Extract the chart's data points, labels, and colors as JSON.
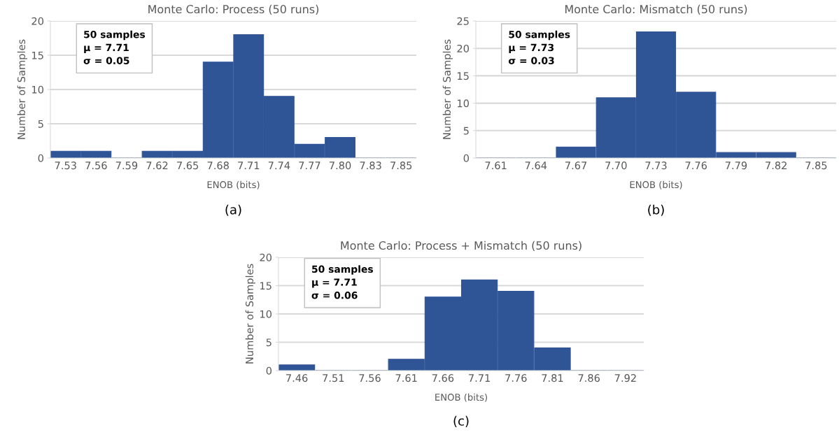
{
  "chart_data": [
    {
      "type": "bar",
      "title": "Monte Carlo: Process (50 runs)",
      "xlabel": "ENOB (bits)",
      "ylabel": "Number of Samples",
      "categories": [
        "7.53",
        "7.56",
        "7.59",
        "7.62",
        "7.65",
        "7.68",
        "7.71",
        "7.74",
        "7.77",
        "7.80",
        "7.83",
        "7.85"
      ],
      "values": [
        1,
        1,
        0,
        1,
        1,
        14,
        18,
        9,
        2,
        3,
        0,
        0
      ],
      "color": "#2f5597",
      "ylim": [
        0,
        20
      ],
      "yticks": [
        0,
        5,
        10,
        15,
        20
      ],
      "grid": "y",
      "annotations": [
        "50 samples\nμ = 7.71\nσ = 0.05",
        "(a)"
      ]
    },
    {
      "type": "bar",
      "title": "Monte Carlo: Mismatch (50 runs)",
      "xlabel": "ENOB (bits)",
      "ylabel": "Number of Samples",
      "categories": [
        "7.61",
        "7.64",
        "7.67",
        "7.70",
        "7.73",
        "7.76",
        "7.79",
        "7.82",
        "7.85"
      ],
      "values": [
        0,
        0,
        2,
        11,
        23,
        12,
        1,
        1,
        0
      ],
      "color": "#2f5597",
      "ylim": [
        0,
        25
      ],
      "yticks": [
        0,
        5,
        10,
        15,
        20,
        25
      ],
      "grid": "y",
      "annotations": [
        "50 samples\nμ = 7.73\nσ = 0.03",
        "(b)"
      ]
    },
    {
      "type": "bar",
      "title": "Monte Carlo: Process + Mismatch (50 runs)",
      "xlabel": "ENOB (bits)",
      "ylabel": "Number of Samples",
      "categories": [
        "7.46",
        "7.51",
        "7.56",
        "7.61",
        "7.66",
        "7.71",
        "7.76",
        "7.81",
        "7.86",
        "7.92"
      ],
      "values": [
        1,
        0,
        0,
        2,
        13,
        16,
        14,
        4,
        0,
        0
      ],
      "color": "#2f5597",
      "ylim": [
        0,
        20
      ],
      "yticks": [
        0,
        5,
        10,
        15,
        20
      ],
      "grid": "y",
      "annotations": [
        "50 samples\nμ = 7.71\nσ = 0.06",
        "(c)"
      ]
    }
  ]
}
